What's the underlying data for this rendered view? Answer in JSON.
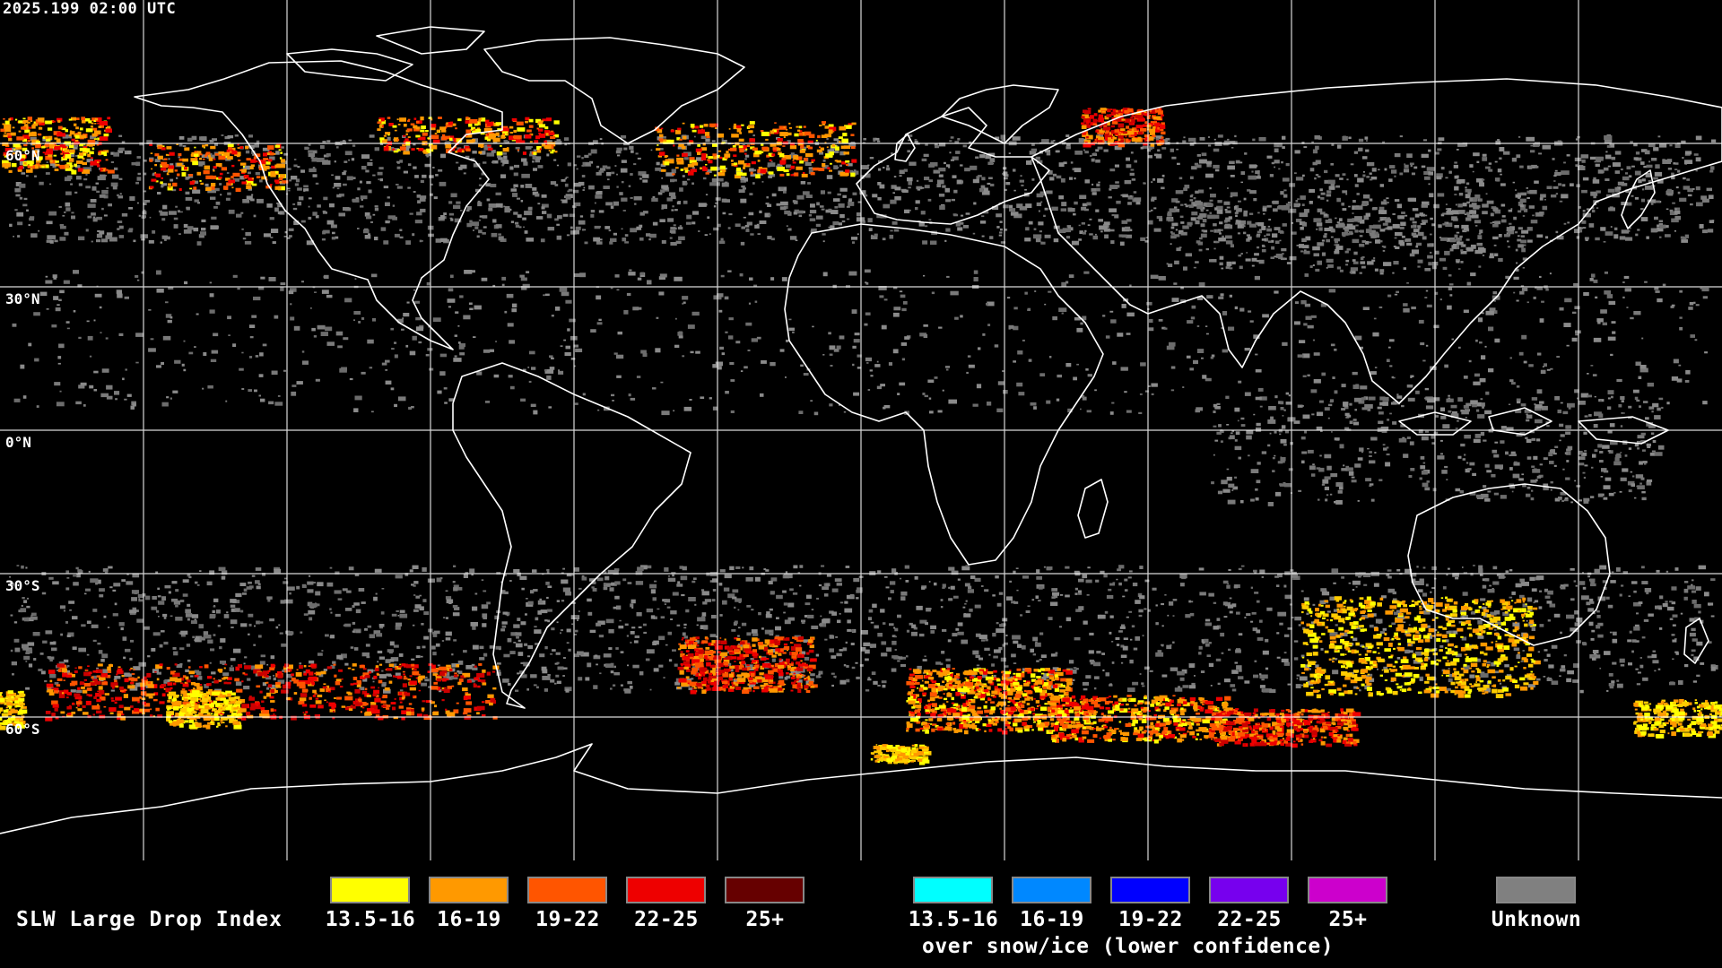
{
  "header": {
    "timestamp": "2025.199 02:00 UTC"
  },
  "latitude_labels": [
    "60°N",
    "30°N",
    "0°N",
    "30°S",
    "60°S"
  ],
  "legend": {
    "title": "SLW Large Drop Index",
    "primary": [
      {
        "label": "13.5-16",
        "color": "#ffff00"
      },
      {
        "label": "16-19",
        "color": "#ff9900"
      },
      {
        "label": "19-22",
        "color": "#ff5500"
      },
      {
        "label": "22-25",
        "color": "#ee0000"
      },
      {
        "label": "25+",
        "color": "#660000"
      }
    ],
    "snow_ice": [
      {
        "label": "13.5-16",
        "color": "#00ffff"
      },
      {
        "label": "16-19",
        "color": "#0088ff"
      },
      {
        "label": "19-22",
        "color": "#0000ff"
      },
      {
        "label": "22-25",
        "color": "#7700ee"
      },
      {
        "label": "25+",
        "color": "#cc00cc"
      }
    ],
    "snow_ice_note": "over snow/ice (lower confidence)",
    "unknown": {
      "label": "Unknown",
      "color": "#808080"
    }
  }
}
